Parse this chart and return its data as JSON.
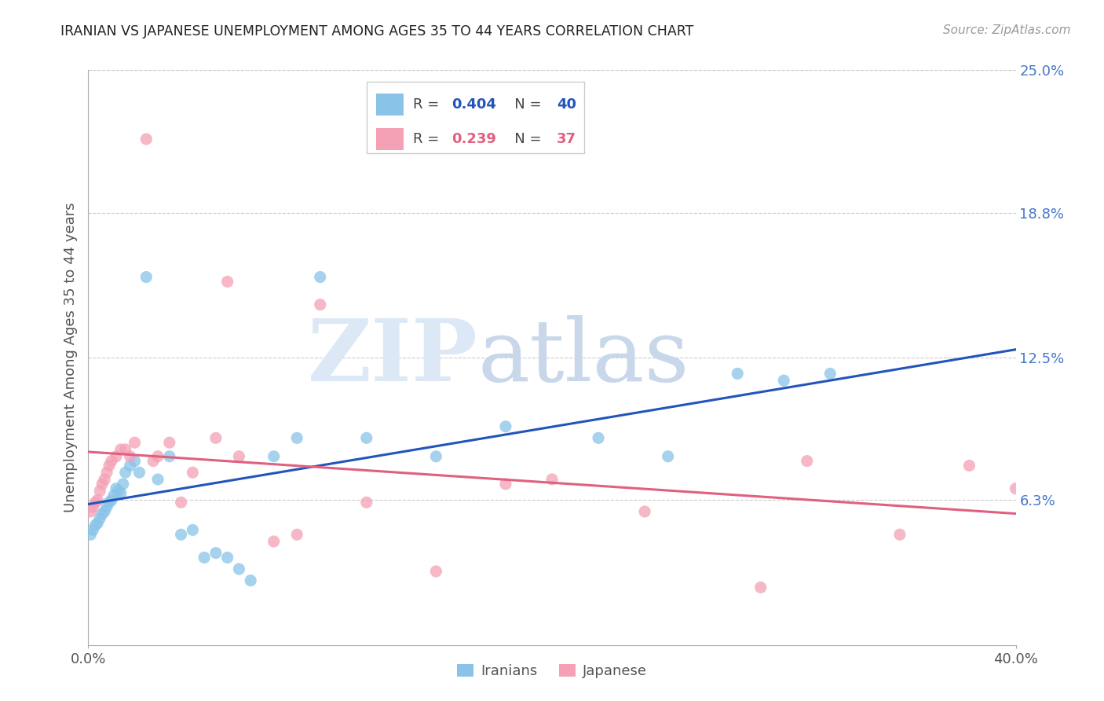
{
  "title": "IRANIAN VS JAPANESE UNEMPLOYMENT AMONG AGES 35 TO 44 YEARS CORRELATION CHART",
  "source": "Source: ZipAtlas.com",
  "ylabel": "Unemployment Among Ages 35 to 44 years",
  "xlim": [
    0.0,
    0.4
  ],
  "ylim": [
    0.0,
    0.25
  ],
  "ytick_labels_right": [
    "25.0%",
    "18.8%",
    "12.5%",
    "6.3%"
  ],
  "ytick_values_right": [
    0.25,
    0.188,
    0.125,
    0.063
  ],
  "grid_color": "#cccccc",
  "background_color": "#ffffff",
  "iranians_color": "#89C4E8",
  "japanese_color": "#F4A0B5",
  "line_iranian_color": "#2255BB",
  "line_japanese_color": "#E06080",
  "watermark_zip": "ZIP",
  "watermark_atlas": "atlas",
  "watermark_color": "#dce8f5",
  "watermark_atlas_color": "#c8d8e8",
  "legend_R_iranian": "0.404",
  "legend_N_iranian": "40",
  "legend_R_japanese": "0.239",
  "legend_N_japanese": "37",
  "iranians_x": [
    0.001,
    0.002,
    0.003,
    0.004,
    0.005,
    0.006,
    0.007,
    0.008,
    0.009,
    0.01,
    0.011,
    0.012,
    0.013,
    0.014,
    0.015,
    0.016,
    0.018,
    0.02,
    0.022,
    0.025,
    0.03,
    0.035,
    0.04,
    0.045,
    0.05,
    0.055,
    0.06,
    0.065,
    0.07,
    0.08,
    0.09,
    0.1,
    0.12,
    0.15,
    0.18,
    0.22,
    0.25,
    0.28,
    0.3,
    0.32
  ],
  "iranians_y": [
    0.048,
    0.05,
    0.052,
    0.053,
    0.055,
    0.057,
    0.058,
    0.06,
    0.062,
    0.063,
    0.065,
    0.068,
    0.067,
    0.066,
    0.07,
    0.075,
    0.078,
    0.08,
    0.075,
    0.16,
    0.072,
    0.082,
    0.048,
    0.05,
    0.038,
    0.04,
    0.038,
    0.033,
    0.028,
    0.082,
    0.09,
    0.16,
    0.09,
    0.082,
    0.095,
    0.09,
    0.082,
    0.118,
    0.115,
    0.118
  ],
  "japanese_x": [
    0.001,
    0.002,
    0.003,
    0.004,
    0.005,
    0.006,
    0.007,
    0.008,
    0.009,
    0.01,
    0.012,
    0.014,
    0.016,
    0.018,
    0.02,
    0.025,
    0.028,
    0.03,
    0.035,
    0.04,
    0.045,
    0.055,
    0.06,
    0.065,
    0.08,
    0.09,
    0.1,
    0.12,
    0.15,
    0.18,
    0.2,
    0.24,
    0.29,
    0.31,
    0.35,
    0.38,
    0.4
  ],
  "japanese_y": [
    0.058,
    0.06,
    0.062,
    0.063,
    0.067,
    0.07,
    0.072,
    0.075,
    0.078,
    0.08,
    0.082,
    0.085,
    0.085,
    0.082,
    0.088,
    0.22,
    0.08,
    0.082,
    0.088,
    0.062,
    0.075,
    0.09,
    0.158,
    0.082,
    0.045,
    0.048,
    0.148,
    0.062,
    0.032,
    0.07,
    0.072,
    0.058,
    0.025,
    0.08,
    0.048,
    0.078,
    0.068
  ]
}
